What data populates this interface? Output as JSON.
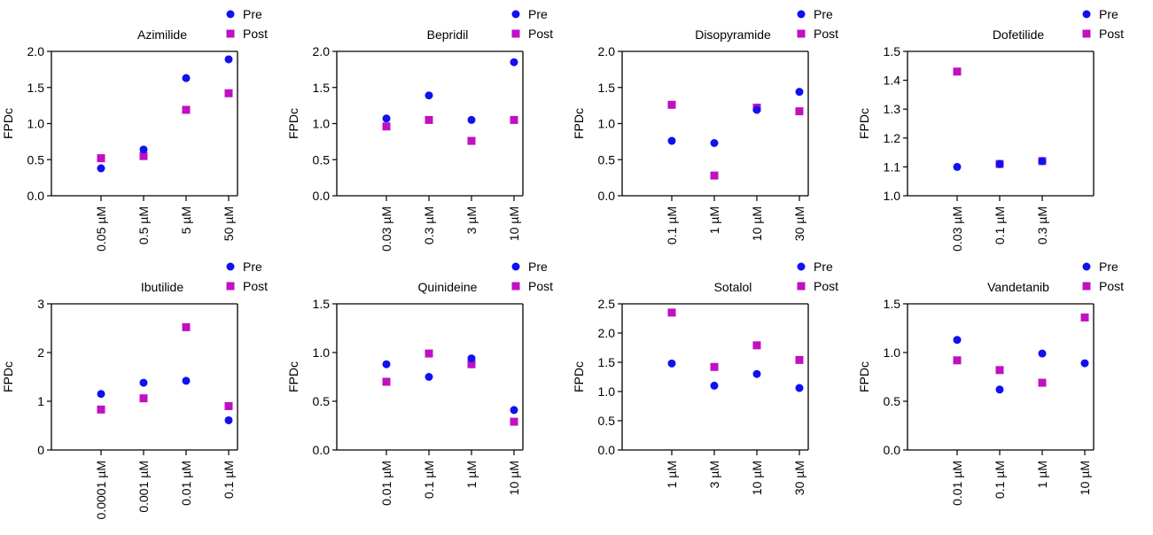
{
  "colors": {
    "pre": "#1010f0",
    "post": "#c010c0",
    "axis": "#000000"
  },
  "legend": {
    "pre_label": "Pre",
    "post_label": "Post",
    "placement": "top-right"
  },
  "chart_data": [
    {
      "type": "scatter",
      "title": "Azimilide",
      "ylabel": "FPDc",
      "xlabel": "",
      "categories": [
        "0.05 µM",
        "0.5 µM",
        "5 µM",
        "50 µM"
      ],
      "ylim": [
        0,
        2.0
      ],
      "yticks": [
        "0.0",
        "0.5",
        "1.0",
        "1.5",
        "2.0"
      ],
      "series": [
        {
          "name": "Pre",
          "values": [
            0.38,
            0.64,
            1.63,
            1.89
          ]
        },
        {
          "name": "Post",
          "values": [
            0.52,
            0.55,
            1.19,
            1.42
          ]
        }
      ]
    },
    {
      "type": "scatter",
      "title": "Bepridil",
      "ylabel": "FPDc",
      "xlabel": "",
      "categories": [
        "0.03 µM",
        "0.3 µM",
        "3 µM",
        "10 µM"
      ],
      "ylim": [
        0,
        2.0
      ],
      "yticks": [
        "0.0",
        "0.5",
        "1.0",
        "1.5",
        "2.0"
      ],
      "series": [
        {
          "name": "Pre",
          "values": [
            1.07,
            1.39,
            1.05,
            1.85
          ]
        },
        {
          "name": "Post",
          "values": [
            0.96,
            1.05,
            0.76,
            1.05
          ]
        }
      ]
    },
    {
      "type": "scatter",
      "title": "Disopyramide",
      "ylabel": "FPDc",
      "xlabel": "",
      "categories": [
        "0.1 µM",
        "1 µM",
        "10 µM",
        "30 µM"
      ],
      "ylim": [
        0,
        2.0
      ],
      "yticks": [
        "0.0",
        "0.5",
        "1.0",
        "1.5",
        "2.0"
      ],
      "series": [
        {
          "name": "Pre",
          "values": [
            0.76,
            0.73,
            1.19,
            1.44
          ]
        },
        {
          "name": "Post",
          "values": [
            1.26,
            0.28,
            1.22,
            1.17
          ]
        }
      ]
    },
    {
      "type": "scatter",
      "title": "Dofetilide",
      "ylabel": "FPDc",
      "xlabel": "",
      "categories": [
        "0.03 µM",
        "0.1 µM",
        "0.3 µM"
      ],
      "ylim": [
        1.0,
        1.5
      ],
      "yticks": [
        "1.0",
        "1.1",
        "1.2",
        "1.3",
        "1.4",
        "1.5"
      ],
      "series": [
        {
          "name": "Pre",
          "values": [
            1.1,
            1.11,
            1.12
          ]
        },
        {
          "name": "Post",
          "values": [
            1.43,
            1.11,
            1.12
          ]
        }
      ]
    },
    {
      "type": "scatter",
      "title": "Ibutilide",
      "ylabel": "FPDc",
      "xlabel": "",
      "categories": [
        "0.0001 µM",
        "0.001 µM",
        "0.01 µM",
        "0.1 µM"
      ],
      "ylim": [
        0,
        3
      ],
      "yticks": [
        "0",
        "1",
        "2",
        "3"
      ],
      "series": [
        {
          "name": "Pre",
          "values": [
            1.15,
            1.38,
            1.42,
            0.61
          ]
        },
        {
          "name": "Post",
          "values": [
            0.83,
            1.06,
            2.52,
            0.9
          ]
        }
      ]
    },
    {
      "type": "scatter",
      "title": "Quinideine",
      "ylabel": "FPDc",
      "xlabel": "",
      "categories": [
        "0.01 µM",
        "0.1 µM",
        "1 µM",
        "10 µM"
      ],
      "ylim": [
        0,
        1.5
      ],
      "yticks": [
        "0.0",
        "0.5",
        "1.0",
        "1.5"
      ],
      "series": [
        {
          "name": "Pre",
          "values": [
            0.88,
            0.75,
            0.94,
            0.41
          ]
        },
        {
          "name": "Post",
          "values": [
            0.7,
            0.99,
            0.88,
            0.29
          ]
        }
      ]
    },
    {
      "type": "scatter",
      "title": "Sotalol",
      "ylabel": "FPDc",
      "xlabel": "",
      "categories": [
        "1 µM",
        "3 µM",
        "10 µM",
        "30 µM"
      ],
      "ylim": [
        0,
        2.5
      ],
      "yticks": [
        "0.0",
        "0.5",
        "1.0",
        "1.5",
        "2.0",
        "2.5"
      ],
      "series": [
        {
          "name": "Pre",
          "values": [
            1.48,
            1.1,
            1.3,
            1.06
          ]
        },
        {
          "name": "Post",
          "values": [
            2.35,
            1.42,
            1.79,
            1.54
          ]
        }
      ]
    },
    {
      "type": "scatter",
      "title": "Vandetanib",
      "ylabel": "FPDc",
      "xlabel": "",
      "categories": [
        "0.01 µM",
        "0.1 µM",
        "1 µM",
        "10 µM"
      ],
      "ylim": [
        0,
        1.5
      ],
      "yticks": [
        "0.0",
        "0.5",
        "1.0",
        "1.5"
      ],
      "series": [
        {
          "name": "Pre",
          "values": [
            1.13,
            0.62,
            0.99,
            0.89
          ]
        },
        {
          "name": "Post",
          "values": [
            0.92,
            0.82,
            0.69,
            1.36
          ]
        }
      ]
    }
  ]
}
